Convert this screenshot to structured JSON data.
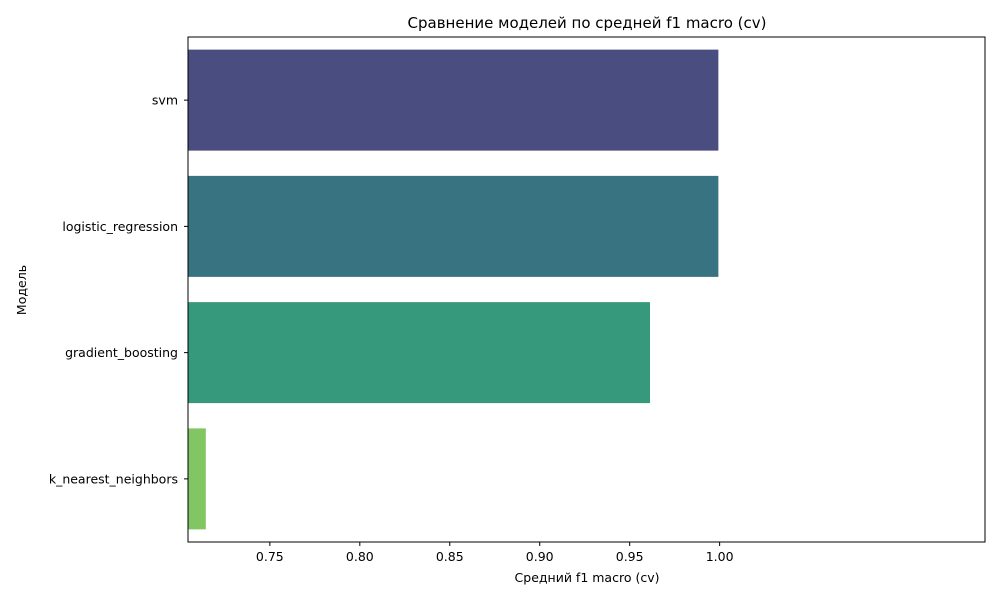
{
  "chart_data": {
    "type": "bar",
    "orientation": "horizontal",
    "title": "Сравнение моделей по средней f1 macro (cv)",
    "xlabel": "Средний f1 macro (cv)",
    "ylabel": "Модель",
    "categories": [
      "svm",
      "logistic_regression",
      "gradient_boosting",
      "k_nearest_neighbors"
    ],
    "values": [
      0.9993,
      0.9993,
      0.9613,
      0.7144
    ],
    "colors": [
      "#4a4d80",
      "#377380",
      "#37997b",
      "#82c663"
    ],
    "xlim": [
      0.7045,
      1.1475
    ],
    "xticks": [
      0.75,
      0.8,
      0.85,
      0.9,
      0.95,
      1.0
    ],
    "xtick_labels": [
      "0.75",
      "0.80",
      "0.85",
      "0.90",
      "0.95",
      "1.00"
    ],
    "grid": false,
    "legend": false
  }
}
